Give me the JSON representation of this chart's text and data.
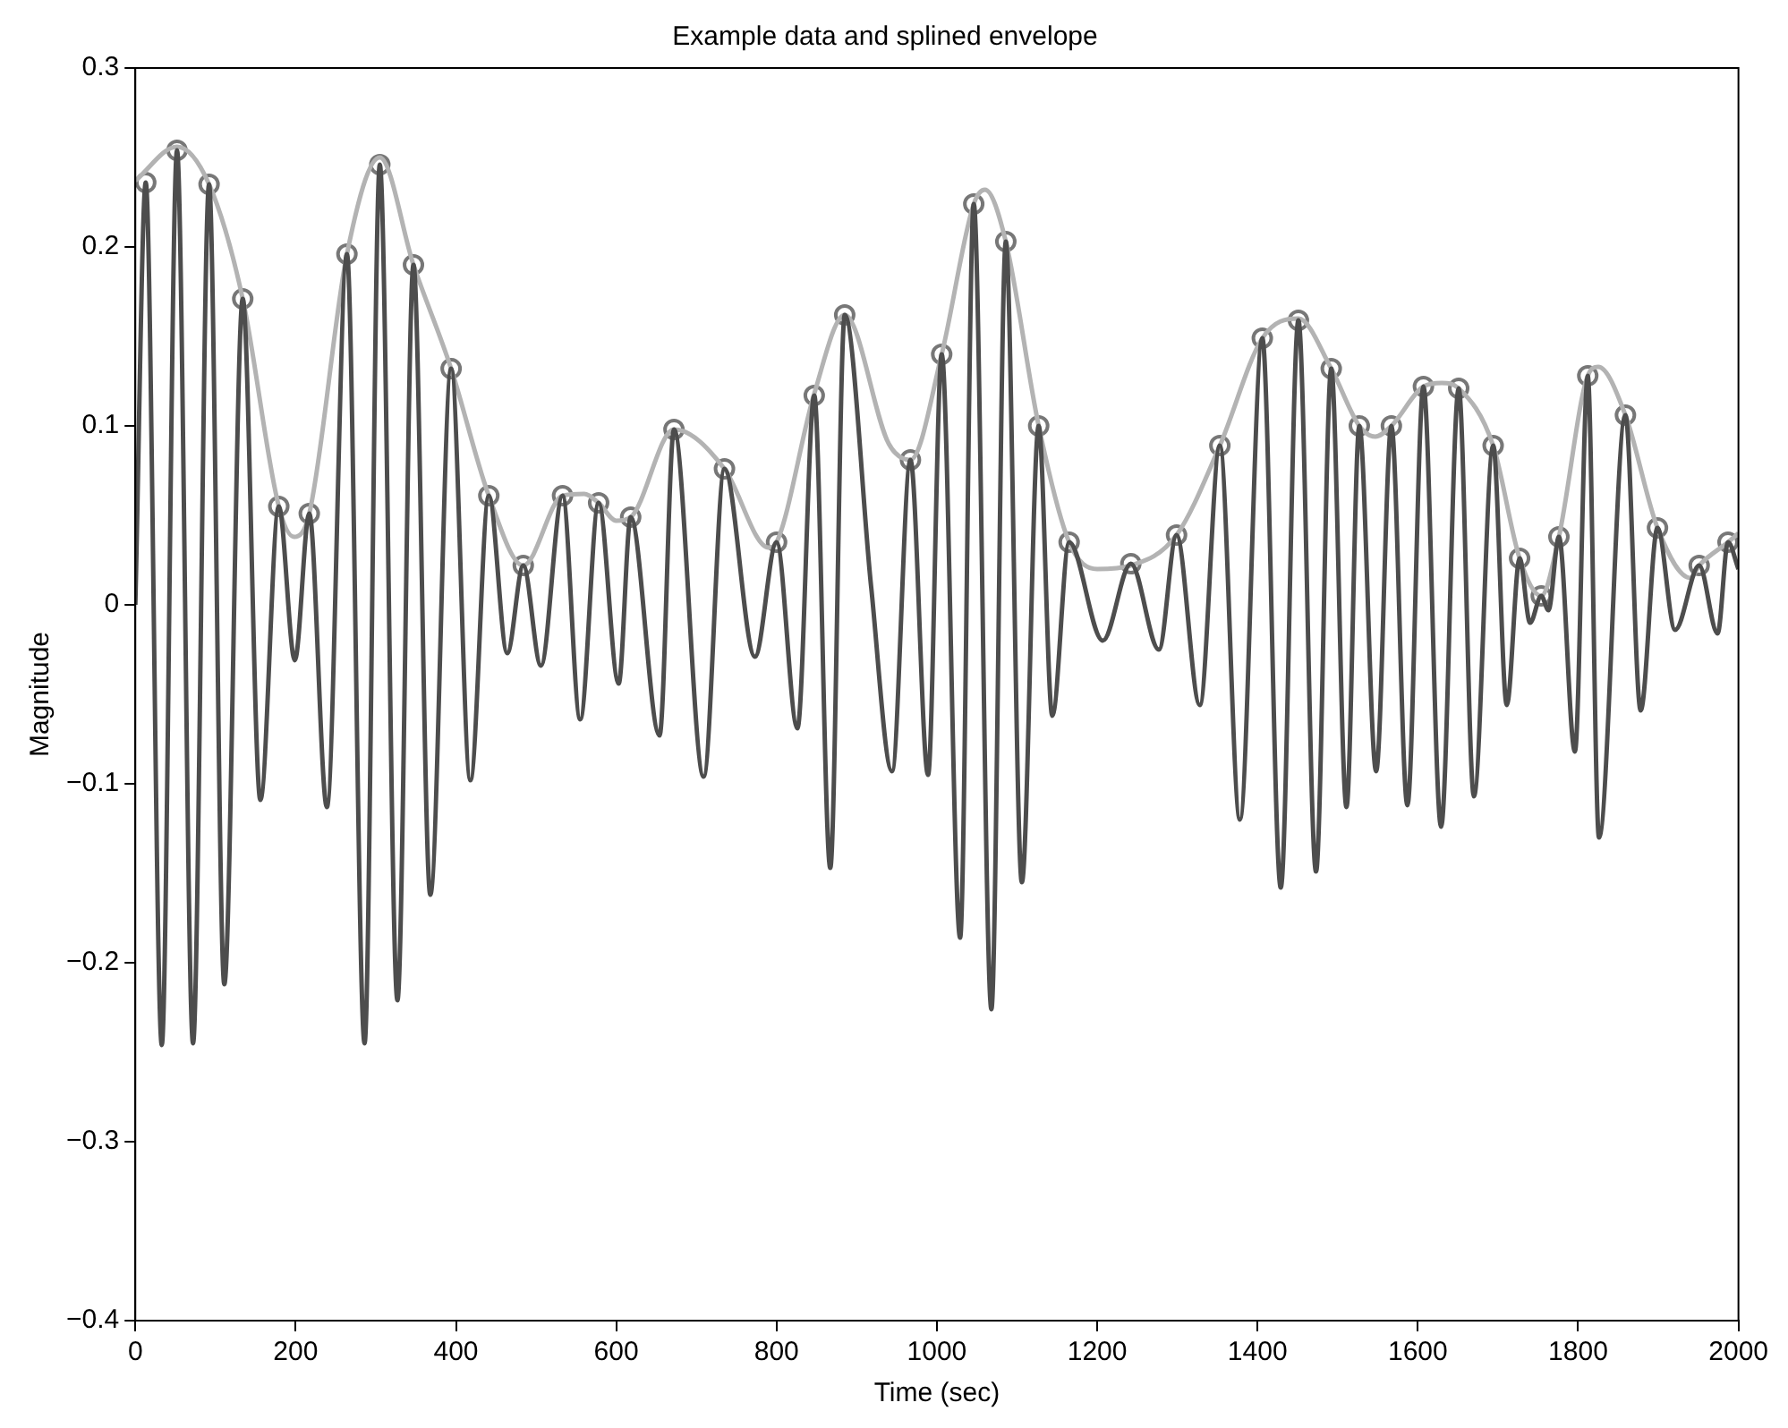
{
  "chart_data": {
    "type": "line",
    "title": "Example data and splined envelope",
    "xlabel": "Time (sec)",
    "ylabel": "Magnitude",
    "xlim": [
      0,
      2000
    ],
    "ylim": [
      -0.4,
      0.3
    ],
    "xticks": [
      0,
      200,
      400,
      600,
      800,
      1000,
      1200,
      1400,
      1600,
      1800,
      2000
    ],
    "yticks": [
      {
        "value": -0.4,
        "label": "−0.4"
      },
      {
        "value": -0.3,
        "label": "−0.3"
      },
      {
        "value": -0.2,
        "label": "−0.2"
      },
      {
        "value": -0.1,
        "label": "−0.1"
      },
      0,
      0.1,
      0.2,
      0.3
    ],
    "grid": false,
    "legend": false,
    "series": [
      {
        "type": "line",
        "color": "#4d4d4d",
        "marker": "none",
        "x": [
          0,
          13,
          33,
          52,
          72,
          92,
          111,
          134,
          156,
          179,
          199,
          217,
          239,
          264,
          286,
          305,
          327,
          347,
          368,
          394,
          418,
          441,
          464,
          484,
          506,
          533,
          555,
          578,
          603,
          618,
          654,
          672,
          709,
          735,
          773,
          800,
          826,
          847,
          867,
          885,
          918,
          944,
          967,
          989,
          1006,
          1029,
          1046,
          1068,
          1086,
          1106,
          1127,
          1144,
          1165,
          1207,
          1242,
          1277,
          1299,
          1328,
          1353,
          1378,
          1406,
          1429,
          1451,
          1473,
          1492,
          1511,
          1527,
          1548,
          1567,
          1587,
          1607,
          1629,
          1651,
          1670,
          1694,
          1711,
          1727,
          1740,
          1754,
          1763,
          1776,
          1796,
          1812,
          1826,
          1859,
          1878,
          1899,
          1921,
          1951,
          1974,
          1987,
          2000
        ],
        "values": [
          0.0,
          0.236,
          -0.246,
          0.254,
          -0.245,
          0.235,
          -0.212,
          0.171,
          -0.109,
          0.055,
          -0.031,
          0.051,
          -0.113,
          0.196,
          -0.245,
          0.246,
          -0.221,
          0.19,
          -0.162,
          0.132,
          -0.098,
          0.061,
          -0.027,
          0.022,
          -0.034,
          0.061,
          -0.064,
          0.057,
          -0.044,
          0.049,
          -0.073,
          0.098,
          -0.096,
          0.076,
          -0.029,
          0.035,
          -0.069,
          0.117,
          -0.147,
          0.162,
          0.01,
          -0.093,
          0.081,
          -0.095,
          0.14,
          -0.186,
          0.224,
          -0.226,
          0.203,
          -0.155,
          0.1,
          -0.062,
          0.035,
          -0.02,
          0.023,
          -0.025,
          0.039,
          -0.056,
          0.089,
          -0.12,
          0.149,
          -0.158,
          0.159,
          -0.149,
          0.132,
          -0.113,
          0.1,
          -0.093,
          0.1,
          -0.112,
          0.122,
          -0.124,
          0.121,
          -0.107,
          0.089,
          -0.056,
          0.026,
          -0.01,
          0.005,
          -0.003,
          0.038,
          -0.082,
          0.128,
          -0.13,
          0.106,
          -0.059,
          0.043,
          -0.014,
          0.022,
          -0.016,
          0.035,
          0.02
        ]
      },
      {
        "type": "line",
        "color": "#b3b3b3",
        "marker": "none",
        "x": [
          0,
          52,
          92,
          134,
          179,
          198,
          217,
          264,
          305,
          347,
          394,
          441,
          484,
          533,
          560,
          578,
          600,
          618,
          672,
          735,
          790,
          800,
          847,
          885,
          940,
          967,
          1006,
          1046,
          1060,
          1086,
          1127,
          1165,
          1200,
          1242,
          1299,
          1353,
          1406,
          1451,
          1492,
          1527,
          1547,
          1567,
          1607,
          1630,
          1651,
          1694,
          1727,
          1754,
          1776,
          1812,
          1825,
          1859,
          1899,
          1940,
          1951,
          1987,
          2000
        ],
        "values": [
          0.237,
          0.256,
          0.235,
          0.171,
          0.055,
          0.038,
          0.051,
          0.196,
          0.25,
          0.19,
          0.132,
          0.061,
          0.022,
          0.061,
          0.062,
          0.057,
          0.047,
          0.049,
          0.098,
          0.076,
          0.032,
          0.035,
          0.118,
          0.162,
          0.09,
          0.081,
          0.14,
          0.224,
          0.232,
          0.203,
          0.1,
          0.035,
          0.02,
          0.022,
          0.039,
          0.089,
          0.149,
          0.16,
          0.132,
          0.1,
          0.094,
          0.1,
          0.122,
          0.124,
          0.121,
          0.089,
          0.026,
          0.005,
          0.038,
          0.128,
          0.133,
          0.106,
          0.043,
          0.015,
          0.022,
          0.035,
          0.04
        ]
      },
      {
        "type": "scatter",
        "color": "#777777",
        "marker": "circle",
        "x": [
          13,
          52,
          92,
          134,
          179,
          217,
          264,
          305,
          347,
          394,
          441,
          484,
          533,
          578,
          618,
          672,
          735,
          800,
          847,
          885,
          967,
          1006,
          1046,
          1086,
          1127,
          1165,
          1242,
          1299,
          1353,
          1406,
          1451,
          1492,
          1527,
          1567,
          1607,
          1651,
          1694,
          1727,
          1754,
          1776,
          1812,
          1859,
          1899,
          1951,
          1987
        ],
        "values": [
          0.236,
          0.254,
          0.235,
          0.171,
          0.055,
          0.051,
          0.196,
          0.246,
          0.19,
          0.132,
          0.061,
          0.022,
          0.061,
          0.057,
          0.049,
          0.098,
          0.076,
          0.035,
          0.117,
          0.162,
          0.081,
          0.14,
          0.224,
          0.203,
          0.1,
          0.035,
          0.023,
          0.039,
          0.089,
          0.149,
          0.159,
          0.132,
          0.1,
          0.1,
          0.122,
          0.121,
          0.089,
          0.026,
          0.005,
          0.038,
          0.128,
          0.106,
          0.043,
          0.022,
          0.035
        ]
      }
    ]
  }
}
